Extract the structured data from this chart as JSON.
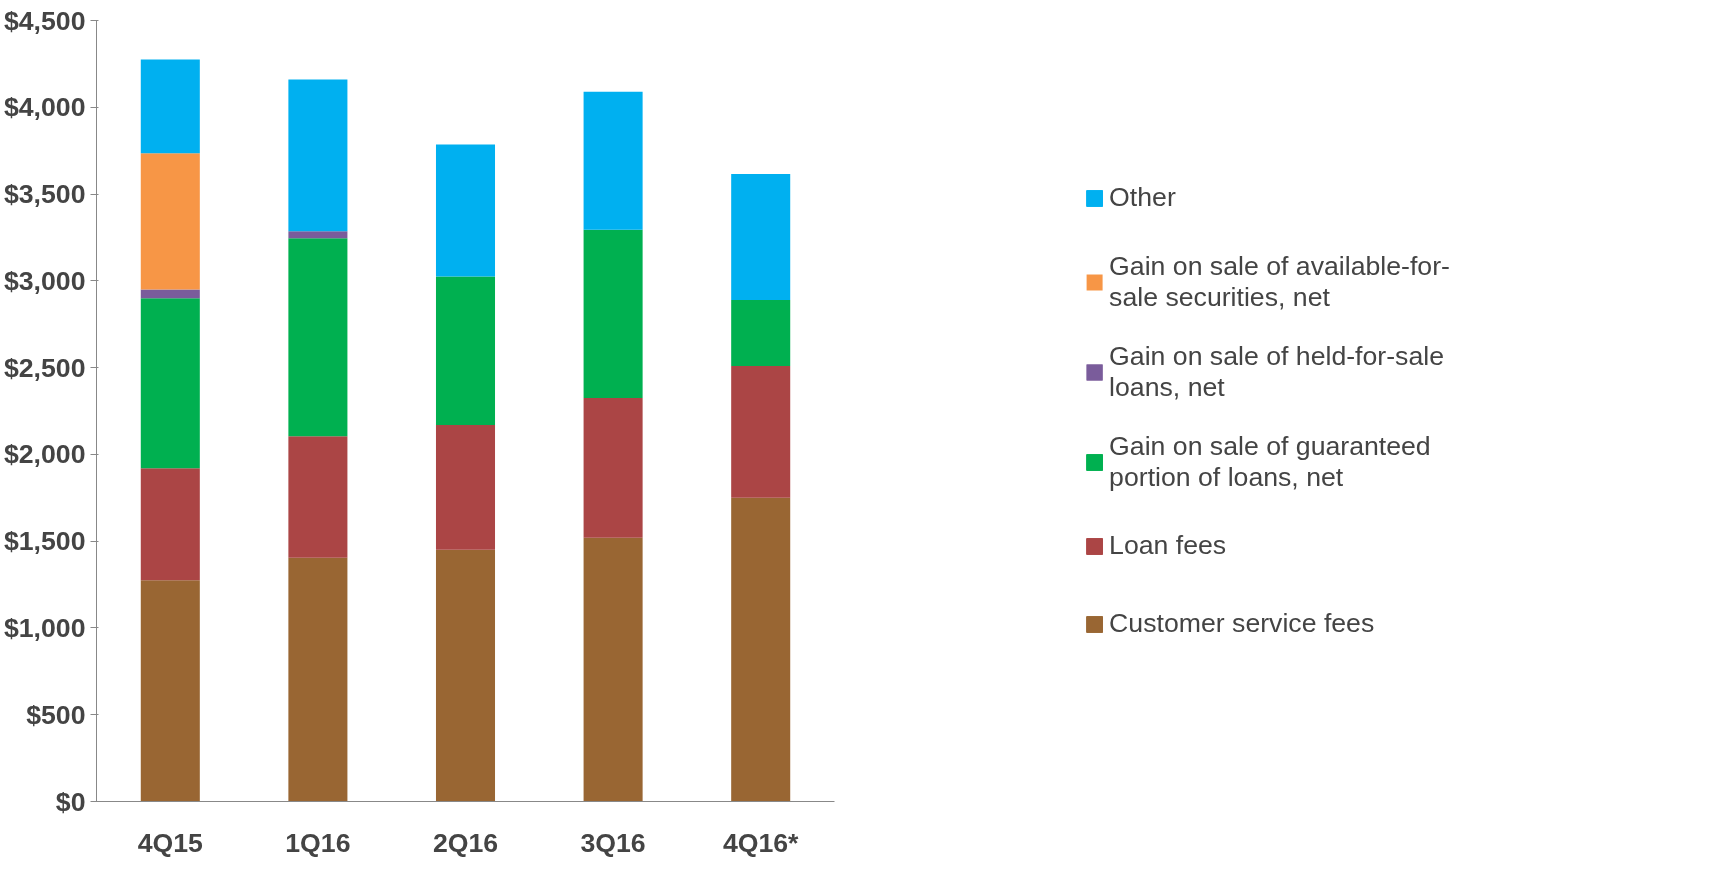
{
  "chart_data": {
    "type": "bar",
    "stacked": true,
    "categories": [
      "4Q15",
      "1Q16",
      "2Q16",
      "3Q16",
      "4Q16*"
    ],
    "series": [
      {
        "name": "Customer service fees",
        "color": "#996633",
        "values": [
          1275,
          1405,
          1450,
          1520,
          1750
        ]
      },
      {
        "name": "Loan fees",
        "color": "#ab4545",
        "values": [
          645,
          700,
          720,
          805,
          760
        ]
      },
      {
        "name": "Gain on sale of guaranteed portion of loans, net",
        "color": "#00b050",
        "values": [
          980,
          1140,
          855,
          970,
          380
        ]
      },
      {
        "name": "Gain on sale of held-for-sale loans, net",
        "color": "#7a5c9b",
        "values": [
          50,
          40,
          null,
          null,
          null
        ]
      },
      {
        "name": "Gain on sale of available-for-sale securities, net",
        "color": "#f79646",
        "values": [
          785,
          null,
          null,
          null,
          null
        ]
      },
      {
        "name": "Other",
        "color": "#00b0f0",
        "values": [
          540,
          875,
          760,
          795,
          725
        ]
      }
    ],
    "ylim": [
      0,
      4500
    ],
    "yticks": [
      {
        "value": 0,
        "label": "$0"
      },
      {
        "value": 500,
        "label": "$500"
      },
      {
        "value": 1000,
        "label": "$1,000"
      },
      {
        "value": 1500,
        "label": "$1,500"
      },
      {
        "value": 2000,
        "label": "$2,000"
      },
      {
        "value": 2500,
        "label": "$2,500"
      },
      {
        "value": 3000,
        "label": "$3,000"
      },
      {
        "value": 3500,
        "label": "$3,500"
      },
      {
        "value": 4000,
        "label": "$4,000"
      },
      {
        "value": 4500,
        "label": "$4,500"
      }
    ],
    "grid": false,
    "legend": "right"
  }
}
